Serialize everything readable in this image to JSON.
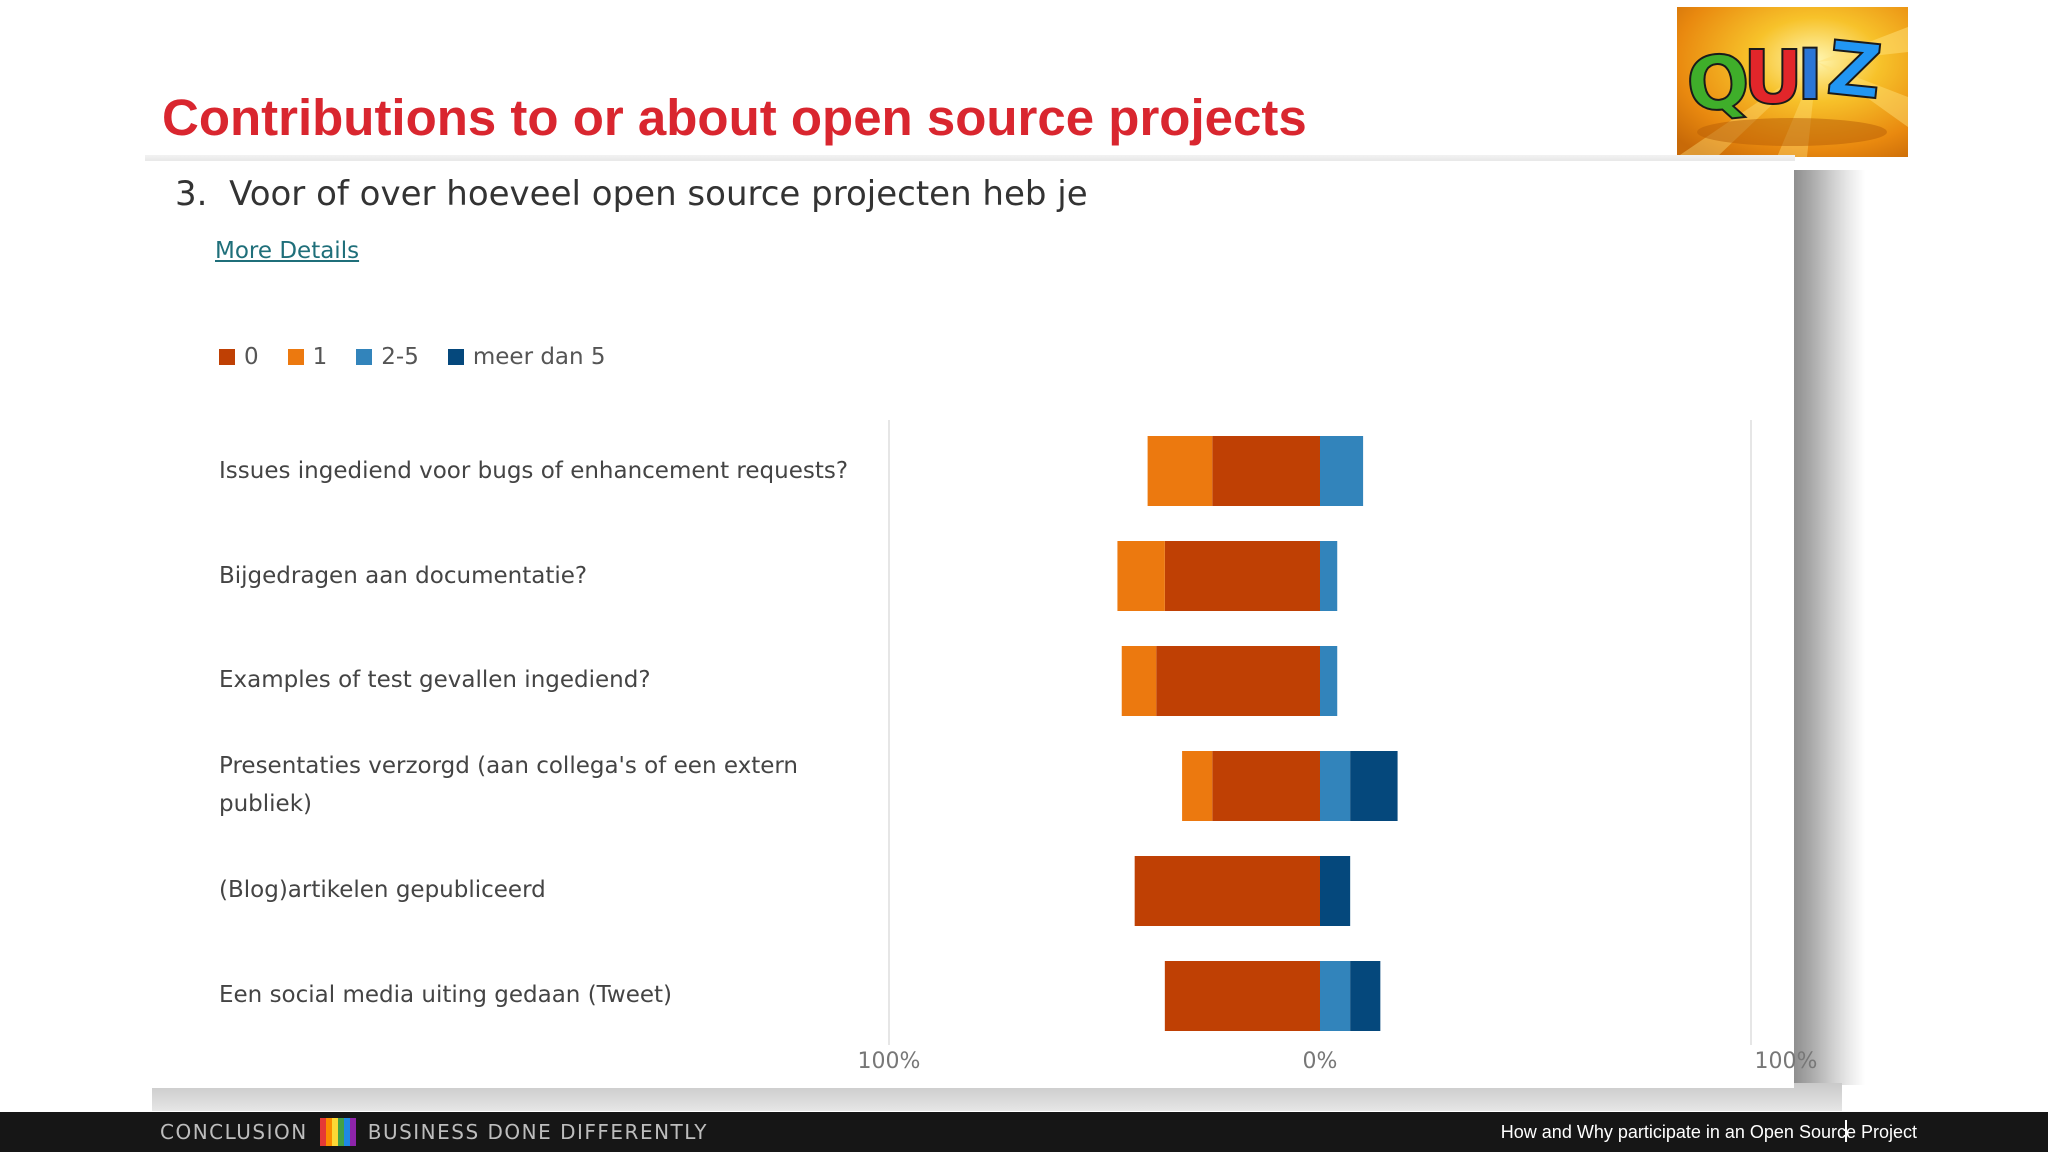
{
  "slide": {
    "title": "Contributions to or about open source projects",
    "quiz_logo_text": "QUIZ"
  },
  "form": {
    "question_number": "3.",
    "question_text": "Voor of over hoeveel open source projecten heb je",
    "more_details_link": "More Details"
  },
  "chart_data": {
    "type": "bar",
    "orientation": "horizontal-diverging",
    "legend_position": "top-left",
    "legend": [
      {
        "label": "0",
        "color": "#bf4004"
      },
      {
        "label": "1",
        "color": "#ec790f"
      },
      {
        "label": "2-5",
        "color": "#3284bb"
      },
      {
        "label": "meer dan 5",
        "color": "#05487c"
      }
    ],
    "categories": [
      "Issues ingediend voor bugs of enhancement requests?",
      "Bijgedragen aan documentatie?",
      "Examples of test gevallen ingediend?",
      "Presentaties verzorgd (aan collega's of een extern publiek)",
      "(Blog)artikelen gepubliceerd",
      "Een social media uiting gedaan (Tweet)"
    ],
    "series": [
      {
        "name": "0",
        "side": "negative",
        "values": [
          25,
          36,
          38,
          25,
          43,
          36
        ]
      },
      {
        "name": "1",
        "side": "negative",
        "values": [
          15,
          11,
          8,
          7,
          0,
          0
        ]
      },
      {
        "name": "2-5",
        "side": "positive",
        "values": [
          10,
          4,
          4,
          7,
          0,
          7
        ]
      },
      {
        "name": "meer dan 5",
        "side": "positive",
        "values": [
          0,
          0,
          0,
          11,
          7,
          7
        ]
      }
    ],
    "x_ticks": [
      "100%",
      "0%",
      "100%"
    ],
    "xlim": [
      -100,
      100
    ],
    "unit": "%",
    "grid": false
  },
  "footer": {
    "left_label": "CONCLUSION",
    "tagline": "BUSINESS DONE DIFFERENTLY",
    "right_text": "How and Why participate in an Open Source Project",
    "stripe_colors": [
      "#e53935",
      "#fb8c00",
      "#fdd835",
      "#43a047",
      "#1e88e5",
      "#8e24aa"
    ]
  }
}
